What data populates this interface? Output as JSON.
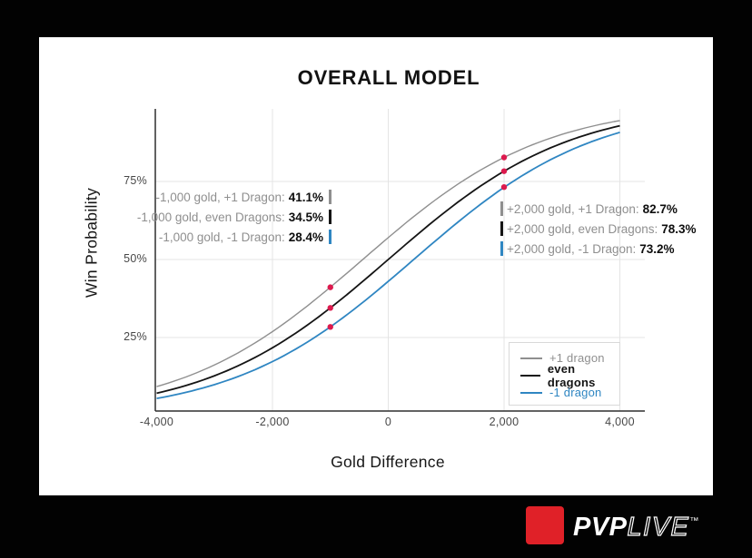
{
  "title": "OVERALL MODEL",
  "axes": {
    "x_label": "Gold Difference",
    "y_label": "Win Probability",
    "x_ticks": [
      {
        "label": "-4,000",
        "value": -4000
      },
      {
        "label": "-2,000",
        "value": -2000
      },
      {
        "label": "0",
        "value": 0
      },
      {
        "label": "2,000",
        "value": 2000
      },
      {
        "label": "4,000",
        "value": 4000
      }
    ],
    "y_ticks": [
      {
        "label": "25%",
        "value": 25
      },
      {
        "label": "50%",
        "value": 50
      },
      {
        "label": "75%",
        "value": 75
      }
    ]
  },
  "legend": {
    "items": [
      {
        "label": "+1 dragon",
        "color": "#8f8f8f",
        "bold": false
      },
      {
        "label": "even dragons",
        "color": "#141414",
        "bold": true
      },
      {
        "label": "-1 dragon",
        "color": "#2f86c2",
        "bold": false
      }
    ]
  },
  "annotations": {
    "left": {
      "items": [
        {
          "text": "-1,000 gold, +1 Dragon:",
          "value": "41.1%",
          "color": "#8f8f8f"
        },
        {
          "text": "-1,000 gold, even Dragons:",
          "value": "34.5%",
          "color": "#141414"
        },
        {
          "text": "-1,000 gold, -1 Dragon:",
          "value": "28.4%",
          "color": "#2f86c2"
        }
      ]
    },
    "right": {
      "items": [
        {
          "text": "+2,000 gold, +1 Dragon:",
          "value": "82.7%",
          "color": "#8f8f8f"
        },
        {
          "text": "+2,000 gold, even Dragons:",
          "value": "78.3%",
          "color": "#141414"
        },
        {
          "text": "+2,000 gold, -1 Dragon:",
          "value": "73.2%",
          "color": "#2f86c2"
        }
      ]
    }
  },
  "chart_data": {
    "type": "line",
    "title": "OVERALL MODEL",
    "xlabel": "Gold Difference",
    "ylabel": "Win Probability",
    "xlim": [
      -4000,
      4450
    ],
    "ylim_pct": [
      0,
      100
    ],
    "grid": true,
    "legend_position": "lower right",
    "x_gold": [
      -4000,
      -3500,
      -3000,
      -2500,
      -2000,
      -1500,
      -1000,
      -500,
      0,
      500,
      1000,
      1500,
      2000,
      2500,
      3000,
      3500,
      4000
    ],
    "series": [
      {
        "name": "+1 dragon",
        "dragon": 1,
        "color": "#8f8f8f",
        "stroke_width": 1.4,
        "values_pct": [
          9.3,
          12.3,
          16.2,
          21.1,
          26.9,
          33.7,
          41.1,
          49.0,
          57.0,
          64.6,
          71.6,
          77.6,
          82.7,
          86.8,
          90.1,
          92.6,
          94.5
        ]
      },
      {
        "name": "even dragons",
        "dragon": 0,
        "color": "#141414",
        "stroke_width": 1.8,
        "values_pct": [
          7.2,
          9.6,
          12.8,
          16.8,
          21.7,
          27.7,
          34.5,
          42.1,
          50.0,
          57.9,
          65.5,
          72.3,
          78.3,
          83.2,
          87.3,
          90.4,
          92.9
        ]
      },
      {
        "name": "-1 dragon",
        "dragon": -1,
        "color": "#2f86c2",
        "stroke_width": 1.8,
        "values_pct": [
          5.5,
          7.4,
          9.9,
          13.2,
          17.3,
          22.4,
          28.4,
          35.4,
          43.0,
          51.0,
          58.9,
          66.4,
          73.2,
          78.9,
          83.8,
          87.7,
          90.7
        ]
      }
    ],
    "model": {
      "type": "logistic",
      "logit_slope_per_gold": 0.000641,
      "dragon_logit_offset": 0.2825
    },
    "markers": [
      {
        "gold": -1000,
        "pct": 41.1,
        "series": "+1 dragon"
      },
      {
        "gold": -1000,
        "pct": 34.5,
        "series": "even dragons"
      },
      {
        "gold": -1000,
        "pct": 28.4,
        "series": "-1 dragon"
      },
      {
        "gold": 2000,
        "pct": 82.7,
        "series": "+1 dragon"
      },
      {
        "gold": 2000,
        "pct": 78.3,
        "series": "even dragons"
      },
      {
        "gold": 2000,
        "pct": 73.2,
        "series": "-1 dragon"
      }
    ],
    "marker_color": "#dc1a4e"
  },
  "colors": {
    "grid": "#e4e4e4",
    "axis": "#2e2e2e",
    "card_background": "#ffffff",
    "page_background": "#020202",
    "logo_red": "#e02128"
  },
  "logo": {
    "brand_bold": "PVP",
    "brand_outline": "LIVE",
    "trademark": "™"
  }
}
